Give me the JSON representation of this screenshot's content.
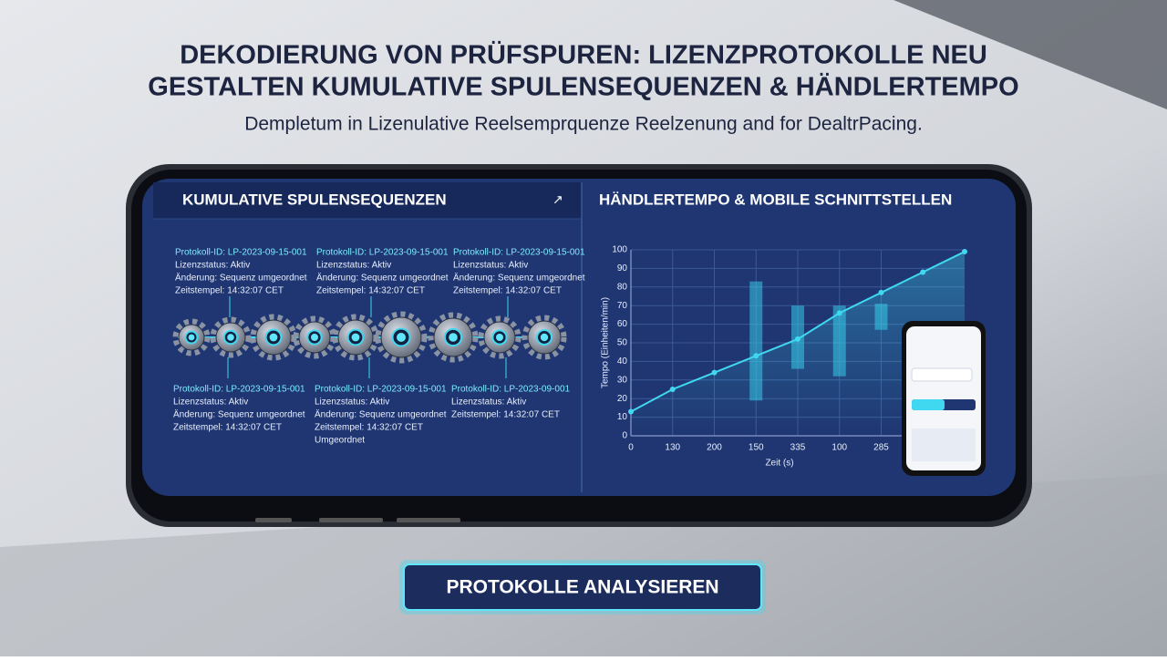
{
  "header": {
    "title_lines": [
      "DEKODIERUNG VON PRÜFSPUREN: LIZENZPROTOKOLLE NEU",
      "GESTALTEN KUMULATIVE SPULENSEQUENZEN & HÄNDLERTEMPO"
    ],
    "subtitle": "Dempletum in Lizenulative Reelsemprquenze Reelzenung and for DealtrPacing."
  },
  "left_panel": {
    "title": "KUMULATIVE SPULENSEQUENZEN",
    "cards": [
      {
        "lines": [
          "Protokoll-ID: LP-2023-09-15-001",
          "Lizenzstatus: Aktiv",
          "Änderung: Sequenz umgeordnet",
          "Zeitstempel: 14:32:07 CET"
        ]
      },
      {
        "lines": [
          "Protokoll-ID: LP-2023-09-15-001",
          "Lizenzstatus: Aktiv",
          "Änderung: Sequenz umgeordnet",
          "Zeitstempel: 14:32:07 CET"
        ]
      },
      {
        "lines": [
          "Protokoll-ID: LP-2023-09-15-001",
          "Lizenzstatus: Aktiv",
          "Änderung: Sequenz umgeordnet",
          "Zeitstempel: 14:32:07 CET"
        ]
      },
      {
        "lines": [
          "Protokoll-ID: LP-2023-09-15-001",
          "Lizenzstatus: Aktiv",
          "Änderung: Sequenz umgeordnet",
          "Zeitstempel: 14:32:07 CET"
        ]
      },
      {
        "lines": [
          "Protokoll-ID: LP-2023-09-15-001",
          "Lizenzstatus: Aktiv",
          "Änderung: Sequenz umgeordnet",
          "Zeitstempel: 14:32:07 CET",
          "Umgeordnet"
        ]
      },
      {
        "lines": [
          "Protokoll-ID: LP-2023-09-001",
          "Lizenzstatus: Aktiv",
          "Zeitstempel: 14:32:07 CET"
        ]
      }
    ]
  },
  "chart_data": {
    "type": "line",
    "title": "HÄNDLERTEMPO & MOBILE SCHNITTSTELLEN",
    "x_label": "Zeit (s)",
    "y_label": "Tempo (Einheiten/min)",
    "x": [
      0,
      1,
      2,
      3,
      4,
      5,
      6,
      7,
      8
    ],
    "series": [
      {
        "color": "#3fd8f0",
        "values": [
          13,
          25,
          34,
          43,
          52,
          66,
          77,
          88,
          99
        ]
      }
    ],
    "ranges": {
      "color": "#35c8e8",
      "x": [
        3,
        4,
        5,
        6
      ],
      "lows": [
        19,
        36,
        32,
        57
      ],
      "highs": [
        83,
        70,
        70,
        71
      ]
    },
    "xlim": [
      0,
      8
    ],
    "ylim": [
      0,
      100
    ],
    "xticks": [
      {
        "value": 0,
        "label": "0"
      },
      {
        "value": 1,
        "label": "130"
      },
      {
        "value": 2,
        "label": "200"
      },
      {
        "value": 3,
        "label": "150"
      },
      {
        "value": 4,
        "label": "335"
      },
      {
        "value": 5,
        "label": "100"
      },
      {
        "value": 6,
        "label": "285"
      }
    ],
    "yticks": [
      0,
      10,
      20,
      30,
      40,
      50,
      60,
      70,
      80,
      90,
      100
    ],
    "grid": true
  },
  "button": {
    "label": "PROTOKOLLE ANALYSIEREN"
  }
}
